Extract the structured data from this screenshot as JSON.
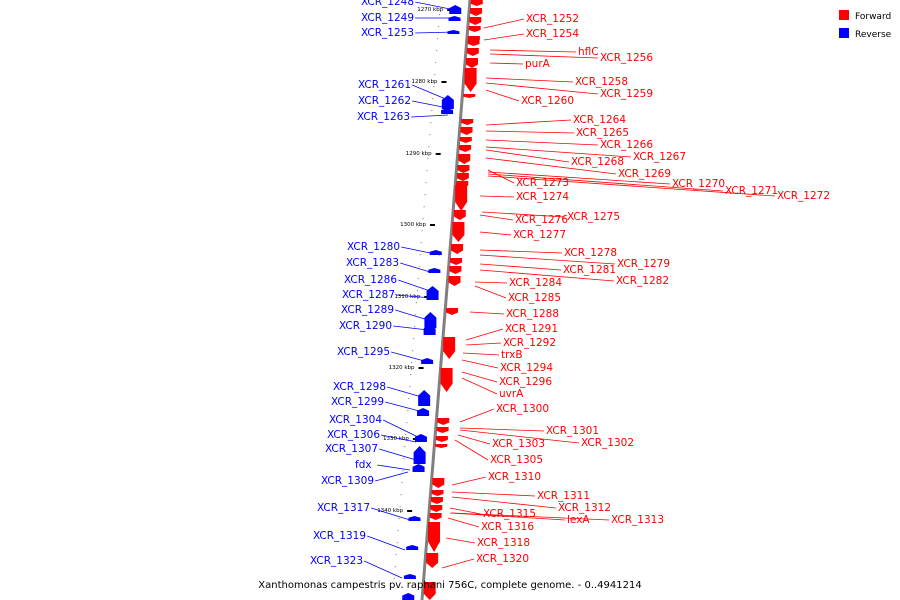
{
  "caption": "Xanthomonas campestris pv. raphani 756C, complete genome. - 0..4941214",
  "legend": [
    {
      "label": "Forward",
      "color": "#ff0000"
    },
    {
      "label": "Reverse",
      "color": "#0000ff"
    }
  ],
  "colors": {
    "forward": "#ff0000",
    "reverse": "#0000ff",
    "backbone": "#808080"
  },
  "ticks": [
    "1270 kbp",
    "1280 kbp",
    "1290 kbp",
    "1300 kbp",
    "1310 kbp",
    "1320 kbp",
    "1330 kbp",
    "1340 kbp"
  ],
  "reverse_labels": [
    "XCR_1248",
    "XCR_1249",
    "XCR_1253",
    "XCR_1261",
    "XCR_1262",
    "XCR_1263",
    "XCR_1280",
    "XCR_1283",
    "XCR_1286",
    "XCR_1287",
    "XCR_1289",
    "XCR_1290",
    "XCR_1295",
    "XCR_1298",
    "XCR_1299",
    "XCR_1304",
    "XCR_1306",
    "XCR_1307",
    "fdx",
    "XCR_1309",
    "XCR_1317",
    "XCR_1319",
    "XCR_1323"
  ],
  "forward_labels": [
    "XCR_1252",
    "XCR_1254",
    "hflC",
    "XCR_1256",
    "purA",
    "XCR_1258",
    "XCR_1259",
    "XCR_1260",
    "XCR_1264",
    "XCR_1265",
    "XCR_1266",
    "XCR_1267",
    "XCR_1268",
    "XCR_1269",
    "XCR_1273",
    "XCR_1270",
    "XCR_1271",
    "XCR_1272",
    "XCR_1274",
    "XCR_1276",
    "XCR_1275",
    "XCR_1277",
    "XCR_1278",
    "XCR_1279",
    "XCR_1281",
    "XCR_1282",
    "XCR_1284",
    "XCR_1285",
    "XCR_1288",
    "XCR_1291",
    "XCR_1292",
    "trxB",
    "XCR_1294",
    "XCR_1296",
    "uvrA",
    "XCR_1300",
    "XCR_1301",
    "XCR_1302",
    "XCR_1303",
    "XCR_1305",
    "XCR_1310",
    "XCR_1311",
    "XCR_1312",
    "XCR_1315",
    "lexA",
    "XCR_1313",
    "XCR_1316",
    "XCR_1318",
    "XCR_1320"
  ]
}
